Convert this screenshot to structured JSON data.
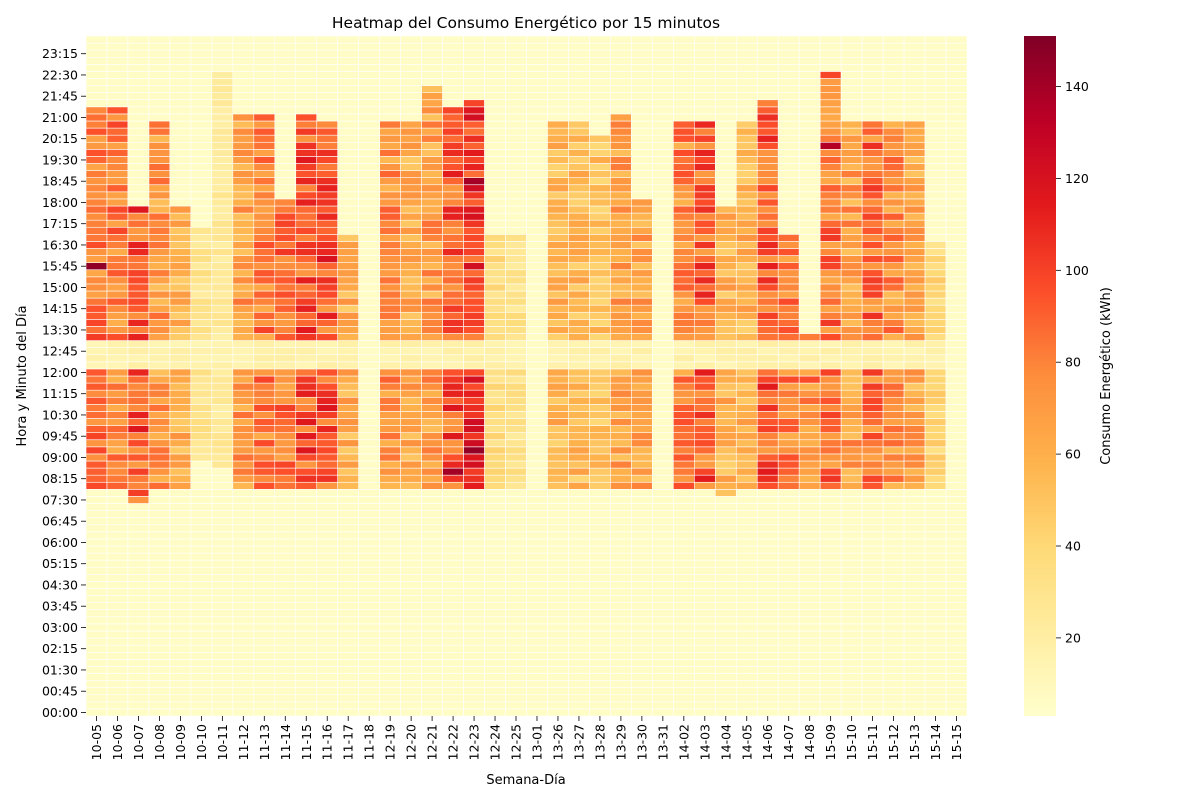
{
  "chart_data": {
    "type": "heatmap",
    "title": "Heatmap del Consumo Energético por 15 minutos",
    "xlabel": "Semana-Día",
    "ylabel": "Hora y Minuto del Día",
    "colorbar_label": "Consumo Energético (kWh)",
    "colormap": "YlOrRd",
    "colorbar_range": [
      3,
      151
    ],
    "colorbar_ticks": [
      20,
      40,
      60,
      80,
      100,
      120,
      140
    ],
    "grid": true,
    "legend_position": "right",
    "x_categories": [
      "10-05",
      "10-06",
      "10-07",
      "10-08",
      "10-09",
      "10-10",
      "10-11",
      "11-12",
      "11-13",
      "11-14",
      "11-15",
      "11-16",
      "11-17",
      "11-18",
      "12-19",
      "12-20",
      "12-21",
      "12-22",
      "12-23",
      "12-24",
      "12-25",
      "13-01",
      "13-26",
      "13-27",
      "13-28",
      "13-29",
      "13-30",
      "13-31",
      "14-02",
      "14-03",
      "14-04",
      "14-05",
      "14-06",
      "14-07",
      "14-08",
      "15-09",
      "15-10",
      "15-11",
      "15-12",
      "15-13",
      "15-14",
      "15-15"
    ],
    "y_tick_labels": [
      "23:15",
      "22:30",
      "21:45",
      "21:00",
      "20:15",
      "19:30",
      "18:45",
      "18:00",
      "17:15",
      "16:30",
      "15:45",
      "15:00",
      "14:15",
      "13:30",
      "12:45",
      "12:00",
      "11:15",
      "10:30",
      "09:45",
      "09:00",
      "08:15",
      "07:30",
      "06:45",
      "06:00",
      "05:15",
      "04:30",
      "03:45",
      "03:00",
      "02:15",
      "01:30",
      "00:45",
      "00:00"
    ],
    "y_tick_range": [
      "00:00",
      "23:15"
    ],
    "slot_minutes": 15,
    "baseline_kwh": 6,
    "active_periods": [
      {
        "column": "10-05",
        "start": "08:00",
        "end": "21:30",
        "kwh": 88
      },
      {
        "column": "10-06",
        "start": "08:00",
        "end": "21:30",
        "kwh": 82
      },
      {
        "column": "10-07",
        "start": "07:30",
        "end": "18:00",
        "kwh": 96
      },
      {
        "column": "10-08",
        "start": "08:00",
        "end": "21:00",
        "kwh": 72
      },
      {
        "column": "10-09",
        "start": "08:00",
        "end": "18:00",
        "kwh": 62
      },
      {
        "column": "10-10",
        "start": "09:00",
        "end": "17:15",
        "kwh": 30
      },
      {
        "column": "10-11",
        "start": "08:45",
        "end": "22:45",
        "kwh": 25
      },
      {
        "column": "11-12",
        "start": "08:00",
        "end": "21:15",
        "kwh": 70
      },
      {
        "column": "11-13",
        "start": "08:00",
        "end": "21:15",
        "kwh": 82
      },
      {
        "column": "11-14",
        "start": "08:00",
        "end": "18:15",
        "kwh": 86
      },
      {
        "column": "11-15",
        "start": "08:00",
        "end": "21:15",
        "kwh": 96
      },
      {
        "column": "11-16",
        "start": "08:00",
        "end": "21:00",
        "kwh": 98
      },
      {
        "column": "11-17",
        "start": "08:00",
        "end": "17:00",
        "kwh": 62
      },
      {
        "column": "12-19",
        "start": "08:00",
        "end": "21:00",
        "kwh": 75
      },
      {
        "column": "12-20",
        "start": "08:00",
        "end": "21:00",
        "kwh": 64
      },
      {
        "column": "12-21",
        "start": "08:00",
        "end": "22:15",
        "kwh": 70
      },
      {
        "column": "12-22",
        "start": "08:00",
        "end": "21:30",
        "kwh": 96
      },
      {
        "column": "12-23",
        "start": "08:00",
        "end": "21:45",
        "kwh": 104
      },
      {
        "column": "12-24",
        "start": "08:00",
        "end": "17:00",
        "kwh": 36
      },
      {
        "column": "12-25",
        "start": "08:00",
        "end": "17:00",
        "kwh": 32
      },
      {
        "column": "13-26",
        "start": "08:00",
        "end": "21:00",
        "kwh": 58
      },
      {
        "column": "13-27",
        "start": "08:00",
        "end": "21:00",
        "kwh": 56
      },
      {
        "column": "13-28",
        "start": "08:00",
        "end": "20:30",
        "kwh": 52
      },
      {
        "column": "13-29",
        "start": "08:00",
        "end": "21:15",
        "kwh": 68
      },
      {
        "column": "13-30",
        "start": "08:00",
        "end": "18:15",
        "kwh": 66
      },
      {
        "column": "14-02",
        "start": "08:00",
        "end": "21:00",
        "kwh": 80
      },
      {
        "column": "14-03",
        "start": "08:00",
        "end": "21:00",
        "kwh": 94
      },
      {
        "column": "14-04",
        "start": "07:45",
        "end": "18:00",
        "kwh": 60
      },
      {
        "column": "14-05",
        "start": "08:00",
        "end": "21:00",
        "kwh": 60
      },
      {
        "column": "14-06",
        "start": "08:00",
        "end": "21:45",
        "kwh": 96
      },
      {
        "column": "14-07",
        "start": "08:00",
        "end": "17:00",
        "kwh": 80
      },
      {
        "column": "14-08",
        "start": "08:00",
        "end": "13:30",
        "kwh": 80
      },
      {
        "column": "15-09",
        "start": "08:00",
        "end": "22:45",
        "kwh": 86
      },
      {
        "column": "15-10",
        "start": "08:00",
        "end": "21:00",
        "kwh": 70
      },
      {
        "column": "15-11",
        "start": "08:00",
        "end": "21:00",
        "kwh": 88
      },
      {
        "column": "15-12",
        "start": "08:00",
        "end": "21:00",
        "kwh": 76
      },
      {
        "column": "15-13",
        "start": "08:00",
        "end": "21:00",
        "kwh": 66
      },
      {
        "column": "15-14",
        "start": "08:00",
        "end": "16:45",
        "kwh": 40
      }
    ],
    "lunch_break": {
      "start": "12:15",
      "end": "13:15",
      "kwh": 12
    },
    "peak_cells": [
      {
        "column": "10-05",
        "time": "15:45",
        "kwh": 146
      },
      {
        "column": "12-23",
        "time": "18:45",
        "kwh": 140
      },
      {
        "column": "12-23",
        "time": "09:15",
        "kwh": 145
      },
      {
        "column": "12-22",
        "time": "08:30",
        "kwh": 140
      },
      {
        "column": "15-09",
        "time": "20:00",
        "kwh": 135
      }
    ]
  }
}
